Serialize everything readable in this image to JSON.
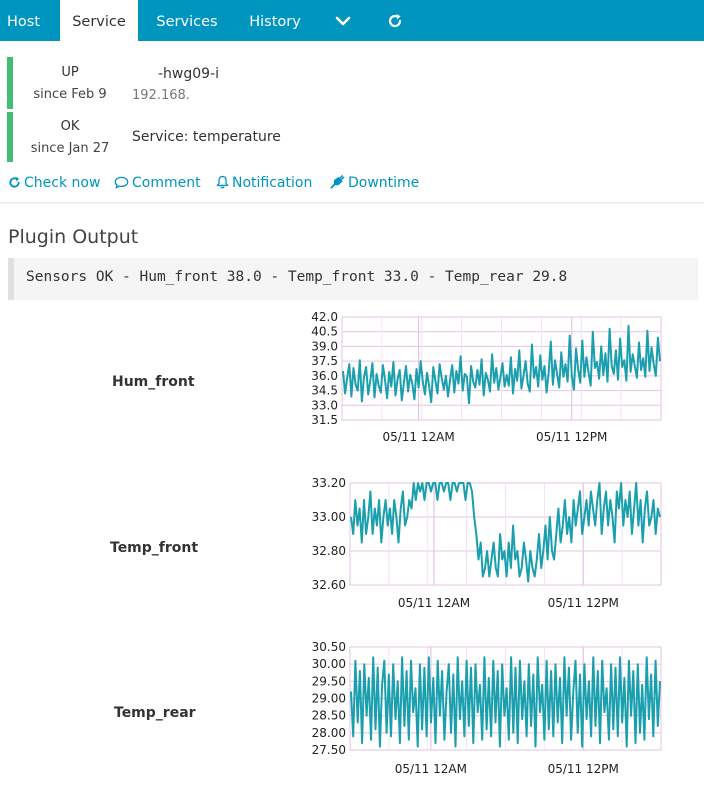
{
  "tabs": [
    {
      "label": "Host",
      "active": false
    },
    {
      "label": "Service",
      "active": true
    },
    {
      "label": "Services",
      "active": false
    },
    {
      "label": "History",
      "active": false
    }
  ],
  "tab_icons": [
    "chevron-down-icon",
    "refresh-icon"
  ],
  "host": {
    "state": "UP",
    "since": "since Feb 9",
    "name": "-hwg09-i",
    "address": "192.168."
  },
  "service": {
    "state": "OK",
    "since": "since Jan 27",
    "name": "Service: temperature"
  },
  "actions": [
    {
      "label": "Check now",
      "icon": "refresh-icon"
    },
    {
      "label": "Comment",
      "icon": "comment-icon"
    },
    {
      "label": "Notification",
      "icon": "bell-icon"
    },
    {
      "label": "Downtime",
      "icon": "plug-icon"
    }
  ],
  "plugin_output": {
    "title": "Plugin Output",
    "text": "Sensors OK - Hum_front 38.0 - Temp_front 33.0 - Temp_rear 29.8"
  },
  "colors": {
    "accent": "#0095bf",
    "ok": "#44bb77",
    "line": "#1a9fae",
    "grid": "#e3c6e3"
  },
  "chart_data": [
    {
      "type": "line",
      "title": "Hum_front",
      "ylim": [
        31.5,
        42.0
      ],
      "yticks": [
        "42.0",
        "40.5",
        "39.0",
        "37.5",
        "36.0",
        "34.5",
        "33.0",
        "31.5"
      ],
      "xticks": [
        "05/11 12AM",
        "05/11 12PM"
      ],
      "xtick_fracs": [
        0.24,
        0.72
      ],
      "series": [
        {
          "values": [
            36.5,
            34.2,
            35.8,
            37.2,
            33.9,
            36.8,
            35.1,
            34.5,
            37.6,
            33.4,
            35.9,
            36.9,
            34.1,
            35.5,
            37.3,
            33.8,
            36.2,
            35.0,
            34.3,
            37.1,
            35.6,
            33.7,
            36.4,
            34.9,
            37.4,
            34.0,
            35.7,
            36.6,
            33.5,
            35.3,
            37.0,
            34.4,
            36.1,
            35.2,
            33.6,
            36.7,
            34.8,
            37.5,
            35.4,
            34.1,
            36.3,
            35.0,
            33.3,
            36.9,
            35.5,
            34.2,
            37.2,
            35.8,
            34.6,
            36.0,
            33.9,
            35.6,
            37.1,
            34.3,
            36.5,
            35.2,
            38.0,
            34.5,
            36.2,
            35.9,
            33.2,
            37.0,
            35.4,
            34.8,
            36.6,
            35.1,
            37.7,
            34.0,
            36.3,
            35.6,
            34.4,
            38.2,
            35.3,
            36.8,
            34.6,
            35.9,
            37.3,
            34.9,
            36.1,
            35.0,
            37.9,
            34.2,
            36.7,
            35.5,
            38.6,
            34.7,
            36.0,
            37.5,
            35.2,
            34.4,
            39.2,
            35.8,
            36.9,
            34.9,
            38.1,
            35.6,
            37.0,
            34.3,
            36.4,
            39.5,
            35.1,
            37.6,
            36.2,
            34.8,
            38.4,
            35.9,
            37.2,
            35.4,
            40.1,
            36.0,
            34.6,
            38.8,
            36.7,
            35.3,
            39.6,
            35.9,
            37.9,
            36.3,
            35.0,
            40.5,
            36.8,
            37.4,
            35.7,
            39.0,
            36.1,
            38.3,
            35.4,
            40.8,
            37.0,
            36.2,
            38.6,
            35.6,
            39.8,
            36.9,
            37.6,
            35.5,
            41.1,
            36.4,
            38.2,
            37.0,
            35.8,
            39.4,
            36.6,
            37.8,
            35.9,
            40.6,
            36.5,
            38.9,
            37.2,
            36.0,
            39.9,
            37.5
          ]
        }
      ]
    },
    {
      "type": "line",
      "title": "Temp_front",
      "ylim": [
        32.6,
        33.2
      ],
      "yticks": [
        "33.20",
        "33.00",
        "32.80",
        "32.60"
      ],
      "xticks": [
        "05/11 12AM",
        "05/11 12PM"
      ],
      "xtick_fracs": [
        0.27,
        0.75
      ],
      "series": [
        {
          "values": [
            33.0,
            32.9,
            33.1,
            32.95,
            33.05,
            32.85,
            33.1,
            32.9,
            33.0,
            33.15,
            32.9,
            33.05,
            32.95,
            33.1,
            32.85,
            33.0,
            33.1,
            32.95,
            33.05,
            32.9,
            33.1,
            33.0,
            32.85,
            33.05,
            33.15,
            32.95,
            33.0,
            33.1,
            33.05,
            33.2,
            33.1,
            33.2,
            33.15,
            33.2,
            33.1,
            33.2,
            33.2,
            33.15,
            33.2,
            33.2,
            33.1,
            33.2,
            33.2,
            33.15,
            33.2,
            33.2,
            33.1,
            33.2,
            33.2,
            33.15,
            33.2,
            33.2,
            33.2,
            33.1,
            33.2,
            33.2,
            33.15,
            33.0,
            32.9,
            32.75,
            32.85,
            32.65,
            32.7,
            32.8,
            32.65,
            32.75,
            32.85,
            32.7,
            32.65,
            32.9,
            32.75,
            32.8,
            32.65,
            32.85,
            32.7,
            32.95,
            32.75,
            32.8,
            32.65,
            32.7,
            32.85,
            32.75,
            32.62,
            32.8,
            32.7,
            32.65,
            32.75,
            32.9,
            32.7,
            32.8,
            32.95,
            32.75,
            33.0,
            32.8,
            32.75,
            32.9,
            33.05,
            32.85,
            32.95,
            33.1,
            32.9,
            33.0,
            32.85,
            33.1,
            32.95,
            33.05,
            33.15,
            32.9,
            33.0,
            33.1,
            32.95,
            33.15,
            33.05,
            32.95,
            33.1,
            33.2,
            32.9,
            33.05,
            33.15,
            32.95,
            33.1,
            33.0,
            32.85,
            33.15,
            33.05,
            33.2,
            32.95,
            33.1,
            33.0,
            33.15,
            32.9,
            33.05,
            33.2,
            32.95,
            33.1,
            32.85,
            33.05,
            33.15,
            32.95,
            33.0,
            33.1,
            32.9,
            33.05,
            33.0
          ]
        }
      ]
    },
    {
      "type": "line",
      "title": "Temp_rear",
      "ylim": [
        27.5,
        30.5
      ],
      "yticks": [
        "30.50",
        "30.00",
        "29.50",
        "29.00",
        "28.50",
        "28.00",
        "27.50"
      ],
      "xticks": [
        "05/11 12AM",
        "05/11 12PM"
      ],
      "xtick_fracs": [
        0.26,
        0.75
      ],
      "series": [
        {
          "values": [
            29.2,
            27.9,
            30.1,
            28.3,
            29.8,
            27.7,
            30.0,
            28.5,
            29.6,
            27.8,
            30.2,
            28.1,
            29.9,
            27.6,
            29.4,
            30.1,
            28.0,
            29.7,
            27.9,
            30.0,
            28.4,
            29.5,
            27.7,
            30.2,
            28.2,
            29.8,
            27.8,
            30.1,
            28.6,
            29.3,
            27.6,
            30.0,
            28.1,
            29.9,
            27.9,
            30.2,
            28.3,
            29.6,
            27.7,
            30.1,
            28.5,
            29.8,
            27.8,
            29.2,
            30.0,
            28.0,
            29.7,
            27.6,
            30.2,
            28.4,
            29.5,
            27.9,
            30.1,
            28.2,
            29.9,
            27.7,
            30.0,
            28.6,
            29.4,
            27.8,
            30.2,
            28.1,
            29.6,
            27.9,
            30.1,
            28.3,
            29.8,
            27.6,
            30.0,
            28.5,
            29.3,
            27.8,
            30.2,
            28.0,
            29.9,
            27.7,
            30.1,
            28.4,
            29.5,
            27.9,
            30.0,
            28.2,
            29.7,
            27.6,
            30.2,
            28.6,
            29.4,
            27.8,
            30.1,
            28.1,
            29.8,
            27.9,
            30.0,
            28.3,
            29.6,
            27.7,
            30.2,
            28.5,
            29.9,
            27.8,
            29.2,
            30.1,
            28.0,
            29.7,
            27.6,
            30.0,
            28.4,
            29.5,
            27.9,
            30.2,
            28.2,
            29.8,
            27.7,
            30.1,
            28.6,
            29.3,
            27.8,
            30.0,
            28.1,
            29.9,
            27.9,
            30.2,
            28.3,
            29.6,
            27.6,
            30.1,
            28.5,
            29.8,
            27.7,
            30.0,
            28.0,
            29.4,
            27.8,
            30.2,
            28.4,
            29.7,
            27.9,
            30.1,
            28.2,
            29.5
          ]
        }
      ]
    }
  ]
}
